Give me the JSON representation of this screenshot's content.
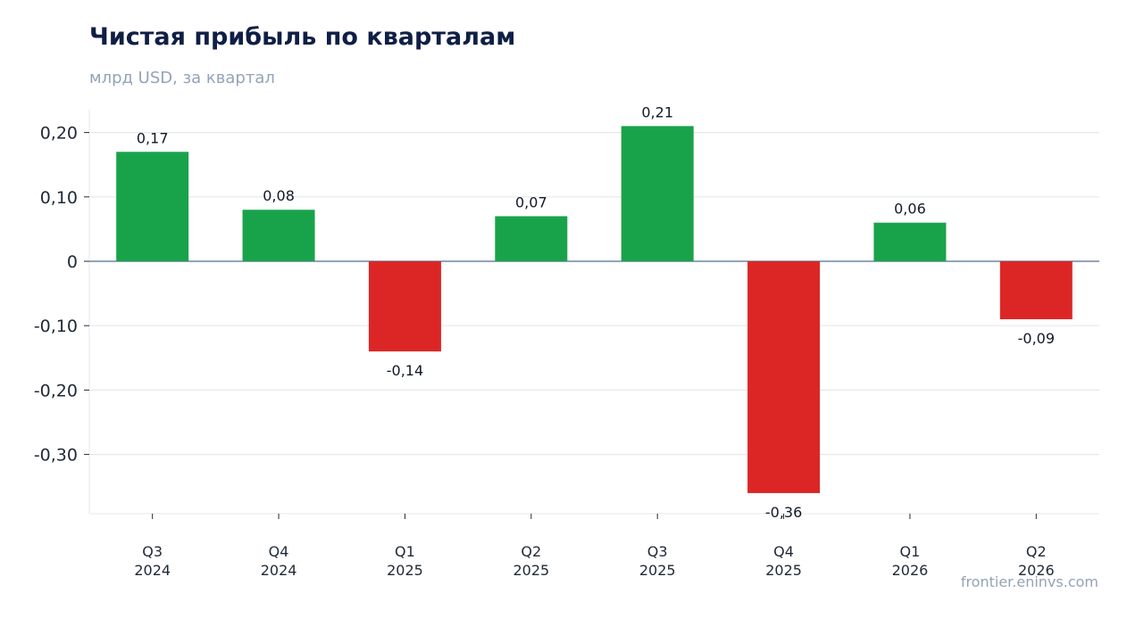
{
  "chart_data": {
    "type": "bar",
    "title": "Чистая прибыль по кварталам",
    "subtitle": "млрд USD, за квартал",
    "categories": [
      [
        "Q3",
        "2024"
      ],
      [
        "Q4",
        "2024"
      ],
      [
        "Q1",
        "2025"
      ],
      [
        "Q2",
        "2025"
      ],
      [
        "Q3",
        "2025"
      ],
      [
        "Q4",
        "2025"
      ],
      [
        "Q1",
        "2026"
      ],
      [
        "Q2",
        "2026"
      ]
    ],
    "values": [
      0.17,
      0.08,
      -0.14,
      0.07,
      0.21,
      -0.36,
      0.06,
      -0.09
    ],
    "value_labels": [
      "0,17",
      "0,08",
      "-0,14",
      "0,07",
      "0,21",
      "-0,36",
      "0,06",
      "-0,09"
    ],
    "yticks": [
      0.2,
      0.1,
      0,
      -0.1,
      -0.2,
      -0.3
    ],
    "ytick_labels": [
      "0,20",
      "0,10",
      "0",
      "-0,10",
      "-0,20",
      "-0,30"
    ],
    "ylim": [
      -0.39,
      0.235
    ],
    "grid": true,
    "colors": {
      "positive": "#18a34a",
      "negative": "#dc2626",
      "zero_line": "#94a3b8",
      "grid": "#e5e7eb"
    }
  },
  "footer": {
    "source": "frontier.eninvs.com"
  }
}
